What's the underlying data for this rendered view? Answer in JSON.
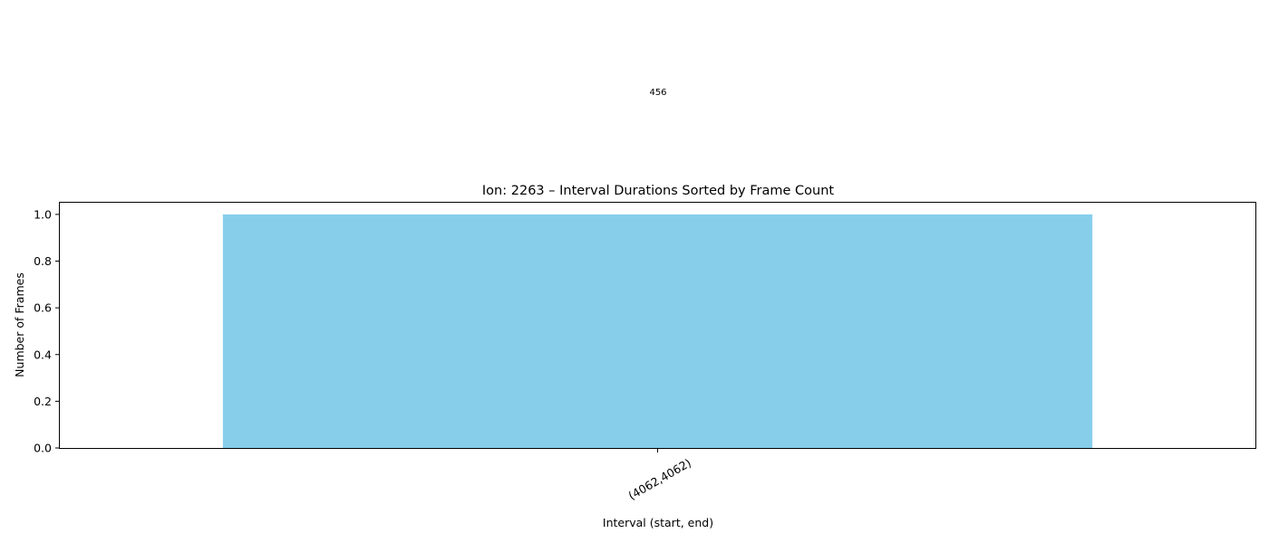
{
  "chart_data": {
    "type": "bar",
    "title": "Ion: 2263 – Interval Durations Sorted by Frame Count",
    "xlabel": "Interval (start, end)",
    "ylabel": "Number of Frames",
    "categories": [
      "(4062,4062)"
    ],
    "values": [
      1
    ],
    "ylim": [
      0,
      1.05
    ],
    "yticks": [
      "0.0",
      "0.2",
      "0.4",
      "0.6",
      "0.8",
      "1.0"
    ],
    "bar_color": "#87CEEB",
    "annotation": "456",
    "grid": false,
    "legend": "none"
  }
}
